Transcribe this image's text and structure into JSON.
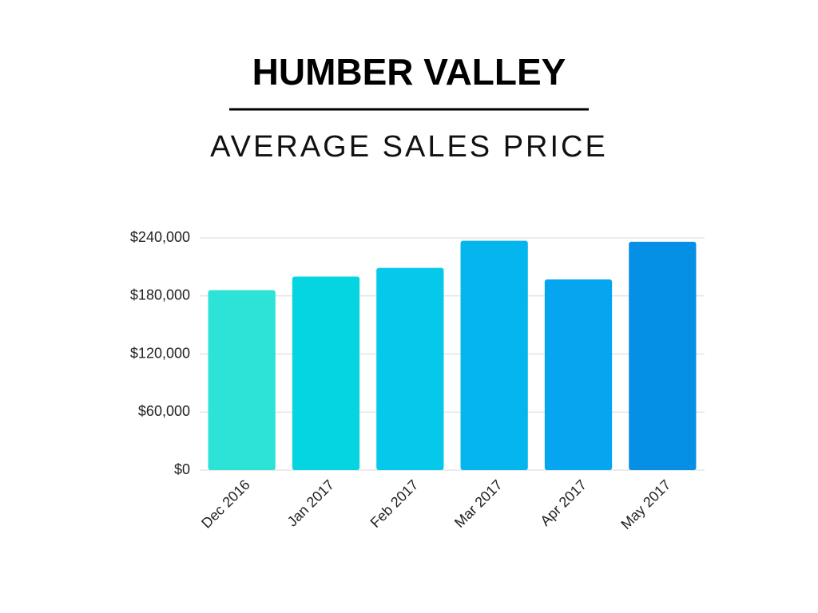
{
  "chart_data": {
    "type": "bar",
    "title": "HUMBER VALLEY",
    "subtitle": "AVERAGE SALES PRICE",
    "categories": [
      "Dec 2016",
      "Jan 2017",
      "Feb 2017",
      "Mar 2017",
      "Apr 2017",
      "May 2017"
    ],
    "values": [
      186000,
      200000,
      209000,
      237000,
      197000,
      236000
    ],
    "colors": [
      "#2de2d6",
      "#05d5e0",
      "#06c8ea",
      "#04b5ee",
      "#05a6ef",
      "#0590e6"
    ],
    "ylim": [
      0,
      240000
    ],
    "yticks": [
      {
        "value": 0,
        "label": "$0"
      },
      {
        "value": 60000,
        "label": "$60,000"
      },
      {
        "value": 120000,
        "label": "$120,000"
      },
      {
        "value": 180000,
        "label": "$180,000"
      },
      {
        "value": 240000,
        "label": "$240,000"
      }
    ],
    "grid": true
  }
}
